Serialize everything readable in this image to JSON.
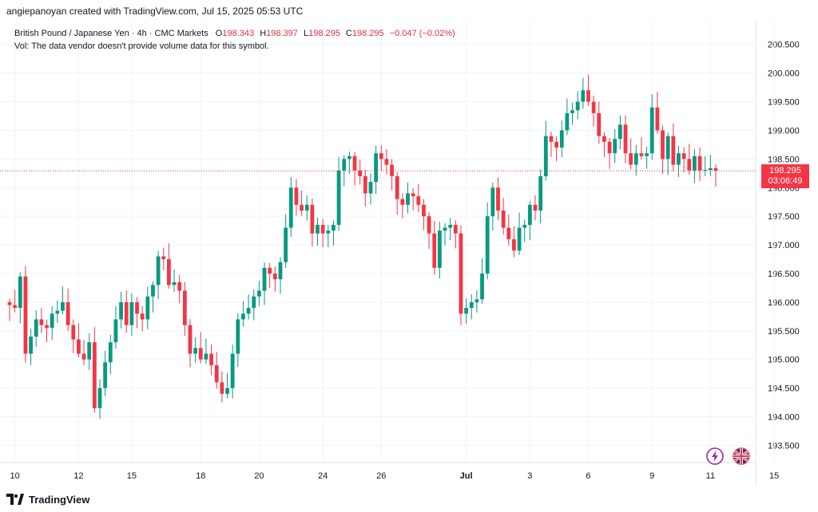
{
  "header": {
    "attribution": "angiepanoyan created with TradingView.com, Jul 15, 2025 05:53 UTC"
  },
  "legend": {
    "symbol": "British Pound / Japanese Yen · 4h · CMC Markets",
    "o_label": "O",
    "o_value": "198.343",
    "h_label": "H",
    "h_value": "198.397",
    "l_label": "L",
    "l_value": "198.295",
    "c_label": "C",
    "c_value": "198.295",
    "change": "−0.047 (−0.02%)",
    "vol_note": "Vol: The data vendor doesn't provide volume data for this symbol."
  },
  "price_badge": {
    "price": "198.295",
    "countdown": "03:06:49"
  },
  "footer": {
    "brand": "TradingView"
  },
  "colors": {
    "up": "#089981",
    "down": "#f23645",
    "grid": "#f0f3fa",
    "axis_text": "#131722"
  },
  "chart_data": {
    "type": "candlestick",
    "title": "British Pound / Japanese Yen · 4h · CMC Markets",
    "ylim": [
      193.2,
      200.9
    ],
    "y_ticks": [
      "193.500",
      "194.000",
      "194.500",
      "195.000",
      "195.500",
      "196.000",
      "196.500",
      "197.000",
      "197.500",
      "198.000",
      "198.500",
      "199.000",
      "199.500",
      "200.000",
      "200.500"
    ],
    "x_ticks": [
      {
        "label": "10",
        "index": 1
      },
      {
        "label": "12",
        "index": 13
      },
      {
        "label": "15",
        "index": 23
      },
      {
        "label": "18",
        "index": 36
      },
      {
        "label": "20",
        "index": 47
      },
      {
        "label": "24",
        "index": 59
      },
      {
        "label": "26",
        "index": 70
      },
      {
        "label": "Jul",
        "index": 86
      },
      {
        "label": "3",
        "index": 98
      },
      {
        "label": "6",
        "index": 109
      },
      {
        "label": "9",
        "index": 121
      },
      {
        "label": "11",
        "index": 132
      },
      {
        "label": "15",
        "index": 144
      }
    ],
    "current_price": 198.295,
    "closes": [
      195.95,
      195.9,
      196.45,
      195.1,
      195.4,
      195.7,
      195.6,
      195.55,
      195.8,
      195.85,
      196.0,
      195.6,
      195.35,
      195.1,
      195.0,
      195.3,
      194.15,
      194.5,
      194.95,
      195.3,
      195.7,
      196.0,
      195.6,
      196.0,
      195.8,
      195.7,
      196.1,
      196.3,
      196.8,
      196.75,
      196.3,
      196.35,
      196.2,
      195.6,
      195.1,
      195.2,
      195.0,
      195.1,
      194.9,
      194.6,
      194.4,
      194.5,
      195.1,
      195.7,
      195.8,
      195.9,
      196.1,
      196.2,
      196.6,
      196.5,
      196.4,
      196.7,
      197.3,
      198.0,
      197.7,
      197.6,
      197.7,
      197.2,
      197.35,
      197.2,
      197.25,
      197.35,
      198.3,
      198.5,
      198.55,
      198.3,
      198.2,
      197.9,
      198.1,
      198.6,
      198.5,
      198.4,
      198.2,
      197.8,
      197.7,
      197.9,
      197.85,
      197.7,
      197.5,
      197.2,
      196.6,
      197.25,
      197.3,
      197.35,
      197.2,
      195.8,
      195.9,
      196.0,
      196.05,
      196.5,
      197.5,
      198.0,
      197.6,
      197.3,
      197.1,
      196.9,
      197.3,
      197.35,
      197.7,
      197.6,
      198.2,
      198.9,
      198.8,
      198.7,
      199.0,
      199.3,
      199.35,
      199.5,
      199.7,
      199.5,
      199.3,
      198.9,
      198.8,
      198.6,
      198.85,
      199.1,
      198.6,
      198.4,
      198.6,
      198.55,
      198.6,
      199.4,
      199.0,
      198.5,
      198.9,
      198.4,
      198.6,
      198.5,
      198.3,
      198.55,
      198.3,
      198.31,
      198.34,
      198.295
    ],
    "series_note": "Approximate 4h candles read from the chart"
  }
}
